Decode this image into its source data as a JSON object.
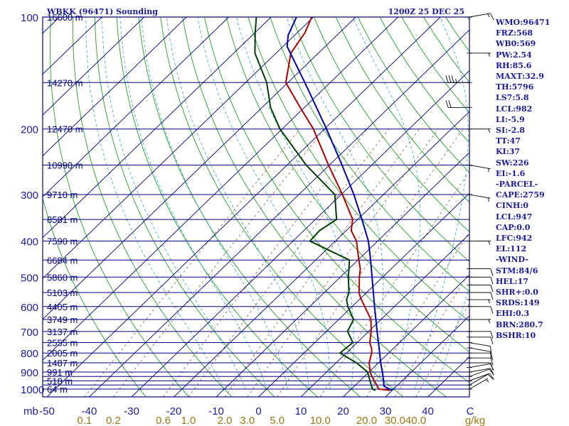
{
  "header": {
    "station": "WBKK (96471) Sounding",
    "datetime": "1200Z 25 DEC 25"
  },
  "indices": [
    "WMO:96471",
    "FRZ:568",
    "WB0:569",
    "PW:2.54",
    "RH:85.6",
    "MAXT:32.9",
    "TH:5796",
    "LS7:5.8",
    "LCL:982",
    "LI:-5.9",
    "SI:-2.8",
    "TT:47",
    "KI:37",
    "SW:226",
    "EI:-1.6",
    "-PARCEL-",
    "CAPE:2759",
    "CINH:0",
    "LCL:947",
    "CAP:0.0",
    "LFC:942",
    "EL:112",
    "-WIND-",
    "STM:84/6",
    "HEL:17",
    "SHR+:0.0",
    "SRDS:149",
    "EHI:0.3",
    "BRN:280.7",
    "BSHR:10"
  ],
  "colors": {
    "frame": "#000080",
    "text": "#1a1aa0",
    "temp": "#b00000",
    "dewpoint": "#004000",
    "parcel": "#0000b0",
    "dry_adiabat": "#20a020",
    "moist_adiabat": "#30a8c8",
    "mixing_ratio": "#806040"
  },
  "chart_data": {
    "type": "skew-t",
    "xlabel_unit": "mb",
    "mixing_ratio_unit": "g/kg",
    "pressure_levels": [
      100,
      200,
      300,
      400,
      500,
      600,
      700,
      800,
      900,
      1000
    ],
    "temperature_ticks": [
      -50,
      -40,
      -30,
      -20,
      -10,
      0,
      10,
      20,
      30,
      40,
      50
    ],
    "temperature_tick_labels": [
      "-50",
      "-40",
      "-30",
      "-20",
      "-10",
      "0",
      "10",
      "20",
      "30",
      "40",
      "C"
    ],
    "mixing_ratio_labels": [
      {
        "value": 0.1,
        "label": "0.1"
      },
      {
        "value": 0.2,
        "label": "0.2"
      },
      {
        "value": 0.6,
        "label": "0.6"
      },
      {
        "value": 1.0,
        "label": "1.0"
      },
      {
        "value": 2.0,
        "label": "2.0"
      },
      {
        "value": 3.0,
        "label": "3.0"
      },
      {
        "value": 5.0,
        "label": "5.0"
      },
      {
        "value": 10.0,
        "label": "10.0"
      },
      {
        "value": 20.0,
        "label": "20.0"
      },
      {
        "value": 30.0,
        "label": "30.0"
      },
      {
        "value": 40.0,
        "label": "40.0"
      }
    ],
    "height_labels": [
      {
        "p": 100,
        "label": "16600 m"
      },
      {
        "p": 150,
        "label": "14270 m"
      },
      {
        "p": 200,
        "label": "12470 m"
      },
      {
        "p": 250,
        "label": "10990 m"
      },
      {
        "p": 300,
        "label": "9710 m"
      },
      {
        "p": 350,
        "label": "8581 m"
      },
      {
        "p": 400,
        "label": "7590 m"
      },
      {
        "p": 450,
        "label": "6684 m"
      },
      {
        "p": 500,
        "label": "5860 m"
      },
      {
        "p": 550,
        "label": "5103 m"
      },
      {
        "p": 600,
        "label": "4405 m"
      },
      {
        "p": 650,
        "label": "3749 m"
      },
      {
        "p": 700,
        "label": "3137 m"
      },
      {
        "p": 750,
        "label": "2555 m"
      },
      {
        "p": 800,
        "label": "2005 m"
      },
      {
        "p": 850,
        "label": "1487 m"
      },
      {
        "p": 900,
        "label": "991 m"
      },
      {
        "p": 950,
        "label": "518 m"
      },
      {
        "p": 1000,
        "label": "64 m"
      }
    ],
    "temperature_profile": [
      {
        "p": 1008,
        "t": 29.5
      },
      {
        "p": 1000,
        "t": 26.5
      },
      {
        "p": 975,
        "t": 25.0
      },
      {
        "p": 950,
        "t": 23.4
      },
      {
        "p": 925,
        "t": 21.8
      },
      {
        "p": 900,
        "t": 20.3
      },
      {
        "p": 850,
        "t": 17.8
      },
      {
        "p": 800,
        "t": 16.0
      },
      {
        "p": 780,
        "t": 15.0
      },
      {
        "p": 750,
        "t": 13.0
      },
      {
        "p": 700,
        "t": 10.6
      },
      {
        "p": 650,
        "t": 7.6
      },
      {
        "p": 600,
        "t": 3.0
      },
      {
        "p": 570,
        "t": 0.0
      },
      {
        "p": 550,
        "t": -1.8
      },
      {
        "p": 500,
        "t": -5.5
      },
      {
        "p": 475,
        "t": -7.3
      },
      {
        "p": 450,
        "t": -9.8
      },
      {
        "p": 400,
        "t": -15.0
      },
      {
        "p": 375,
        "t": -18.8
      },
      {
        "p": 350,
        "t": -21.2
      },
      {
        "p": 300,
        "t": -29.7
      },
      {
        "p": 250,
        "t": -40.2
      },
      {
        "p": 200,
        "t": -52.6
      },
      {
        "p": 175,
        "t": -61.0
      },
      {
        "p": 150,
        "t": -70.5
      },
      {
        "p": 125,
        "t": -76.5
      },
      {
        "p": 110,
        "t": -78.2
      },
      {
        "p": 100,
        "t": -80.4
      }
    ],
    "dewpoint_profile": [
      {
        "p": 1008,
        "td": 26.0
      },
      {
        "p": 1000,
        "td": 25.0
      },
      {
        "p": 950,
        "td": 22.4
      },
      {
        "p": 900,
        "td": 19.7
      },
      {
        "p": 850,
        "td": 14.8
      },
      {
        "p": 800,
        "td": 8.5
      },
      {
        "p": 750,
        "td": 9.0
      },
      {
        "p": 700,
        "td": 5.0
      },
      {
        "p": 650,
        "td": 3.5
      },
      {
        "p": 600,
        "td": -1.0
      },
      {
        "p": 575,
        "td": -3.0
      },
      {
        "p": 550,
        "td": -4.2
      },
      {
        "p": 500,
        "td": -8.1
      },
      {
        "p": 450,
        "td": -12.0
      },
      {
        "p": 400,
        "td": -26.0
      },
      {
        "p": 375,
        "td": -26.3
      },
      {
        "p": 350,
        "td": -25.0
      },
      {
        "p": 300,
        "td": -31.5
      },
      {
        "p": 250,
        "td": -45.5
      },
      {
        "p": 200,
        "td": -60.5
      },
      {
        "p": 175,
        "td": -68.0
      },
      {
        "p": 150,
        "td": -75.0
      },
      {
        "p": 125,
        "td": -85.0
      },
      {
        "p": 110,
        "td": -90.0
      },
      {
        "p": 100,
        "td": -93.5
      }
    ],
    "parcel_profile": [
      {
        "p": 1008,
        "t": 30.0
      },
      {
        "p": 982,
        "t": 27.0
      },
      {
        "p": 950,
        "t": 25.6
      },
      {
        "p": 900,
        "t": 23.2
      },
      {
        "p": 850,
        "t": 20.5
      },
      {
        "p": 800,
        "t": 17.9
      },
      {
        "p": 700,
        "t": 12.0
      },
      {
        "p": 600,
        "t": 5.3
      },
      {
        "p": 500,
        "t": -2.5
      },
      {
        "p": 450,
        "t": -7.0
      },
      {
        "p": 400,
        "t": -12.2
      },
      {
        "p": 350,
        "t": -19.0
      },
      {
        "p": 300,
        "t": -27.0
      },
      {
        "p": 250,
        "t": -37.0
      },
      {
        "p": 200,
        "t": -49.5
      },
      {
        "p": 150,
        "t": -66.0
      },
      {
        "p": 120,
        "t": -79.0
      },
      {
        "p": 112,
        "t": -81.5
      },
      {
        "p": 100,
        "t": -84.0
      }
    ],
    "wind_barbs": [
      {
        "p": 1000,
        "dir": 60,
        "spd": 5
      },
      {
        "p": 975,
        "dir": 60,
        "spd": 10
      },
      {
        "p": 950,
        "dir": 70,
        "spd": 10
      },
      {
        "p": 925,
        "dir": 70,
        "spd": 10
      },
      {
        "p": 900,
        "dir": 80,
        "spd": 10
      },
      {
        "p": 875,
        "dir": 80,
        "spd": 10
      },
      {
        "p": 850,
        "dir": 90,
        "spd": 10
      },
      {
        "p": 825,
        "dir": 90,
        "spd": 10
      },
      {
        "p": 800,
        "dir": 90,
        "spd": 10
      },
      {
        "p": 775,
        "dir": 100,
        "spd": 10
      },
      {
        "p": 750,
        "dir": 100,
        "spd": 10
      },
      {
        "p": 725,
        "dir": 90,
        "spd": 10
      },
      {
        "p": 700,
        "dir": 90,
        "spd": 10
      },
      {
        "p": 650,
        "dir": 90,
        "spd": 5
      },
      {
        "p": 600,
        "dir": 90,
        "spd": 10
      },
      {
        "p": 575,
        "dir": 90,
        "spd": 5
      },
      {
        "p": 550,
        "dir": 90,
        "spd": 10
      },
      {
        "p": 525,
        "dir": 90,
        "spd": 10
      },
      {
        "p": 500,
        "dir": 90,
        "spd": 10
      },
      {
        "p": 475,
        "dir": 90,
        "spd": 10
      },
      {
        "p": 400,
        "dir": 90,
        "spd": 5
      },
      {
        "p": 300,
        "dir": 100,
        "spd": 5
      },
      {
        "p": 250,
        "dir": 100,
        "spd": 5
      },
      {
        "p": 200,
        "dir": 90,
        "spd": 5
      },
      {
        "p": 175,
        "dir": 270,
        "spd": 20
      },
      {
        "p": 150,
        "dir": 270,
        "spd": 35
      },
      {
        "p": 125,
        "dir": 90,
        "spd": 5
      },
      {
        "p": 100,
        "dir": 80,
        "spd": 15
      }
    ]
  }
}
